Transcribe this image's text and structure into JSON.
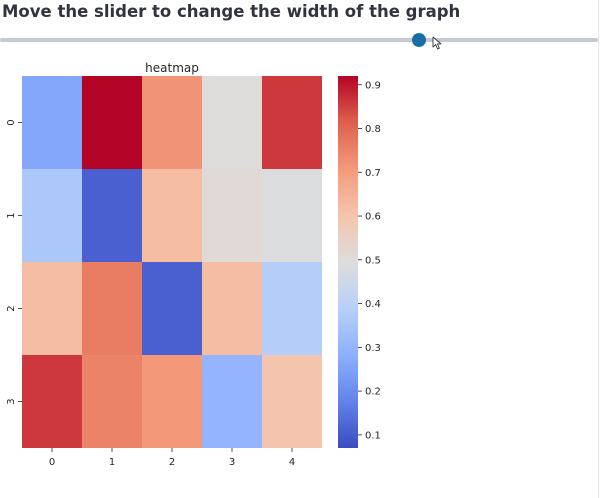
{
  "header": {
    "title": "Move the slider to change the width of the graph"
  },
  "slider": {
    "value_fraction": 0.7,
    "track_color": "#c5c9d3",
    "thumb_color": "#1a6ea8"
  },
  "icons": {
    "cursor": "mouse-pointer-icon"
  },
  "chart_data": {
    "type": "heatmap",
    "title": "heatmap",
    "colormap": "coolwarm",
    "x_labels": [
      "0",
      "1",
      "2",
      "3",
      "4"
    ],
    "y_labels": [
      "0",
      "1",
      "2",
      "3"
    ],
    "values": [
      [
        0.26,
        0.92,
        0.72,
        0.5,
        0.86
      ],
      [
        0.36,
        0.11,
        0.62,
        0.51,
        0.49
      ],
      [
        0.62,
        0.76,
        0.11,
        0.62,
        0.38
      ],
      [
        0.86,
        0.75,
        0.71,
        0.3,
        0.6
      ]
    ],
    "colorbar": {
      "range": [
        0.07,
        0.92
      ],
      "ticks": [
        "0.1",
        "0.2",
        "0.3",
        "0.4",
        "0.5",
        "0.6",
        "0.7",
        "0.8",
        "0.9"
      ]
    }
  }
}
